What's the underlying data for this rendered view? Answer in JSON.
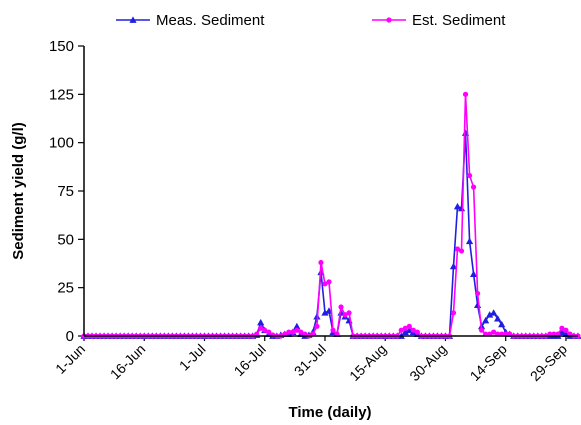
{
  "chart_data": {
    "type": "line",
    "title": "",
    "xlabel": "Time (daily)",
    "ylabel": "Sediment yield (g/l)",
    "ylim": [
      0,
      150
    ],
    "xlim": [
      "2000-06-01",
      "2000-10-02"
    ],
    "y_ticks": [
      "0",
      "25",
      "50",
      "75",
      "100",
      "125",
      "150"
    ],
    "x_ticks": [
      {
        "date": "2000-06-01",
        "label": "1-Jun"
      },
      {
        "date": "2000-06-16",
        "label": "16-Jun"
      },
      {
        "date": "2000-07-01",
        "label": "1-Jul"
      },
      {
        "date": "2000-07-16",
        "label": "16-Jul"
      },
      {
        "date": "2000-07-31",
        "label": "31-Jul"
      },
      {
        "date": "2000-08-15",
        "label": "15-Aug"
      },
      {
        "date": "2000-08-30",
        "label": "30-Aug"
      },
      {
        "date": "2000-09-14",
        "label": "14-Sep"
      },
      {
        "date": "2000-09-29",
        "label": "29-Sep"
      }
    ],
    "grid": false,
    "legend_position": "top",
    "series": [
      {
        "name": "Meas. Sediment",
        "color": "#1f1fe0",
        "marker": "triangle",
        "points": [
          [
            "2000-06-01",
            0
          ],
          [
            "2000-06-02",
            0
          ],
          [
            "2000-06-03",
            0
          ],
          [
            "2000-06-04",
            0
          ],
          [
            "2000-06-05",
            0
          ],
          [
            "2000-06-06",
            0
          ],
          [
            "2000-06-07",
            0
          ],
          [
            "2000-06-08",
            0
          ],
          [
            "2000-06-09",
            0
          ],
          [
            "2000-06-10",
            0
          ],
          [
            "2000-06-11",
            0
          ],
          [
            "2000-06-12",
            0
          ],
          [
            "2000-06-13",
            0
          ],
          [
            "2000-06-14",
            0
          ],
          [
            "2000-06-15",
            0
          ],
          [
            "2000-06-16",
            0
          ],
          [
            "2000-06-17",
            0
          ],
          [
            "2000-06-18",
            0
          ],
          [
            "2000-06-19",
            0
          ],
          [
            "2000-06-20",
            0
          ],
          [
            "2000-06-21",
            0
          ],
          [
            "2000-06-22",
            0
          ],
          [
            "2000-06-23",
            0
          ],
          [
            "2000-06-24",
            0
          ],
          [
            "2000-06-25",
            0
          ],
          [
            "2000-06-26",
            0
          ],
          [
            "2000-06-27",
            0
          ],
          [
            "2000-06-28",
            0
          ],
          [
            "2000-06-29",
            0
          ],
          [
            "2000-06-30",
            0
          ],
          [
            "2000-07-01",
            0
          ],
          [
            "2000-07-02",
            0
          ],
          [
            "2000-07-03",
            0
          ],
          [
            "2000-07-04",
            0
          ],
          [
            "2000-07-05",
            0
          ],
          [
            "2000-07-06",
            0
          ],
          [
            "2000-07-07",
            0
          ],
          [
            "2000-07-08",
            0
          ],
          [
            "2000-07-09",
            0
          ],
          [
            "2000-07-10",
            0
          ],
          [
            "2000-07-11",
            0
          ],
          [
            "2000-07-12",
            0
          ],
          [
            "2000-07-13",
            0
          ],
          [
            "2000-07-14",
            0.5
          ],
          [
            "2000-07-15",
            7
          ],
          [
            "2000-07-16",
            3
          ],
          [
            "2000-07-17",
            1
          ],
          [
            "2000-07-18",
            0
          ],
          [
            "2000-07-19",
            0
          ],
          [
            "2000-07-20",
            0.5
          ],
          [
            "2000-07-21",
            1
          ],
          [
            "2000-07-22",
            1
          ],
          [
            "2000-07-23",
            2
          ],
          [
            "2000-07-24",
            5
          ],
          [
            "2000-07-25",
            1
          ],
          [
            "2000-07-26",
            0
          ],
          [
            "2000-07-27",
            0.5
          ],
          [
            "2000-07-28",
            2
          ],
          [
            "2000-07-29",
            10
          ],
          [
            "2000-07-30",
            33
          ],
          [
            "2000-07-31",
            12
          ],
          [
            "2000-08-01",
            13
          ],
          [
            "2000-08-02",
            2
          ],
          [
            "2000-08-03",
            1
          ],
          [
            "2000-08-04",
            12
          ],
          [
            "2000-08-05",
            10
          ],
          [
            "2000-08-06",
            8
          ],
          [
            "2000-08-07",
            0
          ],
          [
            "2000-08-08",
            0
          ],
          [
            "2000-08-09",
            0
          ],
          [
            "2000-08-10",
            0
          ],
          [
            "2000-08-11",
            0
          ],
          [
            "2000-08-12",
            0
          ],
          [
            "2000-08-13",
            0
          ],
          [
            "2000-08-14",
            0
          ],
          [
            "2000-08-15",
            0
          ],
          [
            "2000-08-16",
            0
          ],
          [
            "2000-08-17",
            0
          ],
          [
            "2000-08-18",
            0
          ],
          [
            "2000-08-19",
            0
          ],
          [
            "2000-08-20",
            2
          ],
          [
            "2000-08-21",
            3
          ],
          [
            "2000-08-22",
            2
          ],
          [
            "2000-08-23",
            1
          ],
          [
            "2000-08-24",
            0
          ],
          [
            "2000-08-25",
            0
          ],
          [
            "2000-08-26",
            0
          ],
          [
            "2000-08-27",
            0
          ],
          [
            "2000-08-28",
            0
          ],
          [
            "2000-08-29",
            0
          ],
          [
            "2000-08-30",
            0
          ],
          [
            "2000-08-31",
            0
          ],
          [
            "2000-09-01",
            36
          ],
          [
            "2000-09-02",
            67
          ],
          [
            "2000-09-03",
            66
          ],
          [
            "2000-09-04",
            105
          ],
          [
            "2000-09-05",
            49
          ],
          [
            "2000-09-06",
            32
          ],
          [
            "2000-09-07",
            16
          ],
          [
            "2000-09-08",
            5
          ],
          [
            "2000-09-09",
            8
          ],
          [
            "2000-09-10",
            11
          ],
          [
            "2000-09-11",
            12
          ],
          [
            "2000-09-12",
            9
          ],
          [
            "2000-09-13",
            6
          ],
          [
            "2000-09-14",
            2
          ],
          [
            "2000-09-15",
            1
          ],
          [
            "2000-09-16",
            0
          ],
          [
            "2000-09-17",
            0
          ],
          [
            "2000-09-18",
            0
          ],
          [
            "2000-09-19",
            0
          ],
          [
            "2000-09-20",
            0
          ],
          [
            "2000-09-21",
            0
          ],
          [
            "2000-09-22",
            0
          ],
          [
            "2000-09-23",
            0
          ],
          [
            "2000-09-24",
            0
          ],
          [
            "2000-09-25",
            0
          ],
          [
            "2000-09-26",
            0
          ],
          [
            "2000-09-27",
            0
          ],
          [
            "2000-09-28",
            2
          ],
          [
            "2000-09-29",
            1
          ],
          [
            "2000-09-30",
            0
          ],
          [
            "2000-10-01",
            0
          ],
          [
            "2000-10-02",
            0
          ]
        ]
      },
      {
        "name": "Est. Sediment",
        "color": "#ff00ff",
        "marker": "circle",
        "points": [
          [
            "2000-06-01",
            0
          ],
          [
            "2000-06-02",
            0
          ],
          [
            "2000-06-03",
            0
          ],
          [
            "2000-06-04",
            0
          ],
          [
            "2000-06-05",
            0
          ],
          [
            "2000-06-06",
            0
          ],
          [
            "2000-06-07",
            0
          ],
          [
            "2000-06-08",
            0
          ],
          [
            "2000-06-09",
            0
          ],
          [
            "2000-06-10",
            0
          ],
          [
            "2000-06-11",
            0
          ],
          [
            "2000-06-12",
            0
          ],
          [
            "2000-06-13",
            0
          ],
          [
            "2000-06-14",
            0
          ],
          [
            "2000-06-15",
            0
          ],
          [
            "2000-06-16",
            0
          ],
          [
            "2000-06-17",
            0
          ],
          [
            "2000-06-18",
            0
          ],
          [
            "2000-06-19",
            0
          ],
          [
            "2000-06-20",
            0
          ],
          [
            "2000-06-21",
            0
          ],
          [
            "2000-06-22",
            0
          ],
          [
            "2000-06-23",
            0
          ],
          [
            "2000-06-24",
            0
          ],
          [
            "2000-06-25",
            0
          ],
          [
            "2000-06-26",
            0
          ],
          [
            "2000-06-27",
            0
          ],
          [
            "2000-06-28",
            0
          ],
          [
            "2000-06-29",
            0
          ],
          [
            "2000-06-30",
            0
          ],
          [
            "2000-07-01",
            0
          ],
          [
            "2000-07-02",
            0
          ],
          [
            "2000-07-03",
            0
          ],
          [
            "2000-07-04",
            0
          ],
          [
            "2000-07-05",
            0
          ],
          [
            "2000-07-06",
            0
          ],
          [
            "2000-07-07",
            0
          ],
          [
            "2000-07-08",
            0
          ],
          [
            "2000-07-09",
            0
          ],
          [
            "2000-07-10",
            0
          ],
          [
            "2000-07-11",
            0
          ],
          [
            "2000-07-12",
            0
          ],
          [
            "2000-07-13",
            0
          ],
          [
            "2000-07-14",
            1
          ],
          [
            "2000-07-15",
            4
          ],
          [
            "2000-07-16",
            3
          ],
          [
            "2000-07-17",
            2
          ],
          [
            "2000-07-18",
            0.5
          ],
          [
            "2000-07-19",
            0
          ],
          [
            "2000-07-20",
            0
          ],
          [
            "2000-07-21",
            1
          ],
          [
            "2000-07-22",
            2
          ],
          [
            "2000-07-23",
            2
          ],
          [
            "2000-07-24",
            3
          ],
          [
            "2000-07-25",
            2
          ],
          [
            "2000-07-26",
            1
          ],
          [
            "2000-07-27",
            0
          ],
          [
            "2000-07-28",
            1
          ],
          [
            "2000-07-29",
            5
          ],
          [
            "2000-07-30",
            38
          ],
          [
            "2000-07-31",
            27
          ],
          [
            "2000-08-01",
            28
          ],
          [
            "2000-08-02",
            3
          ],
          [
            "2000-08-03",
            1
          ],
          [
            "2000-08-04",
            15
          ],
          [
            "2000-08-05",
            11
          ],
          [
            "2000-08-06",
            12
          ],
          [
            "2000-08-07",
            0
          ],
          [
            "2000-08-08",
            0
          ],
          [
            "2000-08-09",
            0
          ],
          [
            "2000-08-10",
            0
          ],
          [
            "2000-08-11",
            0
          ],
          [
            "2000-08-12",
            0
          ],
          [
            "2000-08-13",
            0
          ],
          [
            "2000-08-14",
            0
          ],
          [
            "2000-08-15",
            0
          ],
          [
            "2000-08-16",
            0
          ],
          [
            "2000-08-17",
            0
          ],
          [
            "2000-08-18",
            0
          ],
          [
            "2000-08-19",
            3
          ],
          [
            "2000-08-20",
            4
          ],
          [
            "2000-08-21",
            5
          ],
          [
            "2000-08-22",
            3
          ],
          [
            "2000-08-23",
            2
          ],
          [
            "2000-08-24",
            0
          ],
          [
            "2000-08-25",
            0
          ],
          [
            "2000-08-26",
            0
          ],
          [
            "2000-08-27",
            0
          ],
          [
            "2000-08-28",
            0
          ],
          [
            "2000-08-29",
            0
          ],
          [
            "2000-08-30",
            0
          ],
          [
            "2000-08-31",
            0
          ],
          [
            "2000-09-01",
            12
          ],
          [
            "2000-09-02",
            45
          ],
          [
            "2000-09-03",
            44
          ],
          [
            "2000-09-04",
            125
          ],
          [
            "2000-09-05",
            83
          ],
          [
            "2000-09-06",
            77
          ],
          [
            "2000-09-07",
            22
          ],
          [
            "2000-09-08",
            3
          ],
          [
            "2000-09-09",
            1
          ],
          [
            "2000-09-10",
            1
          ],
          [
            "2000-09-11",
            2
          ],
          [
            "2000-09-12",
            1
          ],
          [
            "2000-09-13",
            1
          ],
          [
            "2000-09-14",
            1
          ],
          [
            "2000-09-15",
            1
          ],
          [
            "2000-09-16",
            0
          ],
          [
            "2000-09-17",
            0
          ],
          [
            "2000-09-18",
            0
          ],
          [
            "2000-09-19",
            0
          ],
          [
            "2000-09-20",
            0
          ],
          [
            "2000-09-21",
            0
          ],
          [
            "2000-09-22",
            0
          ],
          [
            "2000-09-23",
            0
          ],
          [
            "2000-09-24",
            0
          ],
          [
            "2000-09-25",
            1
          ],
          [
            "2000-09-26",
            1
          ],
          [
            "2000-09-27",
            1
          ],
          [
            "2000-09-28",
            4
          ],
          [
            "2000-09-29",
            3
          ],
          [
            "2000-09-30",
            1
          ],
          [
            "2000-10-01",
            0
          ],
          [
            "2000-10-02",
            0
          ]
        ]
      }
    ]
  }
}
